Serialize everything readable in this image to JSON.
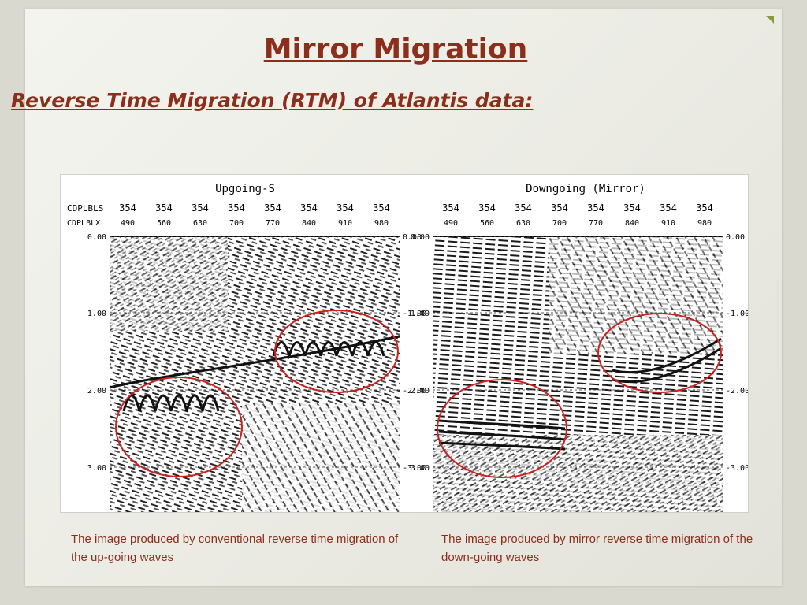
{
  "title": "Mirror Migration",
  "subtitle": "Reverse Time Migration (RTM) of Atlantis data:",
  "panels": [
    {
      "heading": "Upgoing-S",
      "row1_label": "CDPLBLS",
      "row2_label": "CDPLBLX",
      "cdplbls": [
        "354",
        "354",
        "354",
        "354",
        "354",
        "354",
        "354",
        "354"
      ],
      "cdplblx": [
        "490",
        "560",
        "630",
        "700",
        "770",
        "840",
        "910",
        "980"
      ],
      "time_ticks": [
        "0.00",
        "1.00",
        "2.00",
        "3.00"
      ],
      "caption": "The image produced by conventional reverse time migration of the up-going waves"
    },
    {
      "heading": "Downgoing (Mirror)",
      "cdplbls": [
        "354",
        "354",
        "354",
        "354",
        "354",
        "354",
        "354",
        "354"
      ],
      "cdplblx": [
        "490",
        "560",
        "630",
        "700",
        "770",
        "840",
        "910",
        "980"
      ],
      "time_ticks": [
        "0.00",
        "1.00",
        "2.00",
        "3.00"
      ],
      "caption": "The image produced by mirror reverse time migration of the down-going waves"
    }
  ],
  "colors": {
    "title": "#8b2f1c",
    "highlight_circle": "#d11f1f",
    "accent": "#8a9a3c"
  }
}
